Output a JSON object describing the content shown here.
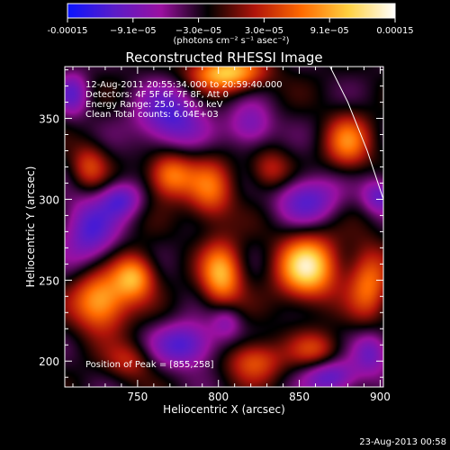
{
  "chart_data": {
    "type": "heatmap",
    "title": "Reconstructed RHESSI Image",
    "colorbar": {
      "tick_labels": [
        "-0.00015",
        "−9.1e−05",
        "−3.0e−05",
        "3.0e−05",
        "9.1e−05",
        "0.00015"
      ],
      "unit_label": "(photons cm⁻² s⁻¹ asec⁻²)",
      "range": [
        -0.00015,
        0.00015
      ],
      "colors": [
        "#0a14ff",
        "#5a1cc8",
        "#9a10a0",
        "#000000",
        "#b0140a",
        "#ff6a00",
        "#ffd040",
        "#ffffff"
      ]
    },
    "xlabel": "Heliocentric X (arcsec)",
    "ylabel": "Heliocentric Y (arcsec)",
    "xlim": [
      705,
      902
    ],
    "ylim": [
      184,
      382
    ],
    "x_ticks": [
      "750",
      "800",
      "850",
      "900"
    ],
    "y_ticks": [
      "200",
      "250",
      "300",
      "350"
    ],
    "annotations": [
      "12-Aug-2011 20:55:34.000 to 20:59:40.000",
      "Detectors: 4F 5F 6F 7F 8F, Att 0",
      "Energy Range: 25.0 - 50.0 keV",
      "Clean    Total counts: 6.04E+03"
    ],
    "peak_label": "Position of Peak = [855,258]",
    "peak": [
      855,
      258
    ],
    "limb_curve": [
      [
        868,
        384
      ],
      [
        880,
        360
      ],
      [
        892,
        330
      ],
      [
        902,
        300
      ]
    ],
    "sources": [
      {
        "x": 855,
        "y": 258,
        "value": 1.0,
        "sx": 13,
        "sy": 14
      },
      {
        "x": 727,
        "y": 237,
        "value": 0.85,
        "sx": 12,
        "sy": 13
      },
      {
        "x": 802,
        "y": 253,
        "value": 0.8,
        "sx": 9,
        "sy": 14
      },
      {
        "x": 748,
        "y": 252,
        "value": 0.75,
        "sx": 9,
        "sy": 10
      },
      {
        "x": 805,
        "y": 378,
        "value": 0.9,
        "sx": 16,
        "sy": 8
      },
      {
        "x": 770,
        "y": 315,
        "value": 0.7,
        "sx": 10,
        "sy": 10
      },
      {
        "x": 795,
        "y": 305,
        "value": 0.55,
        "sx": 10,
        "sy": 14
      },
      {
        "x": 880,
        "y": 335,
        "value": 0.6,
        "sx": 10,
        "sy": 12
      },
      {
        "x": 893,
        "y": 248,
        "value": 0.6,
        "sx": 9,
        "sy": 16
      },
      {
        "x": 822,
        "y": 200,
        "value": 0.55,
        "sx": 12,
        "sy": 9
      },
      {
        "x": 720,
        "y": 320,
        "value": 0.45,
        "sx": 8,
        "sy": 10
      },
      {
        "x": 832,
        "y": 318,
        "value": 0.4,
        "sx": 9,
        "sy": 9
      },
      {
        "x": 860,
        "y": 207,
        "value": 0.4,
        "sx": 11,
        "sy": 8
      },
      {
        "x": 745,
        "y": 200,
        "value": 0.35,
        "sx": 10,
        "sy": 8
      },
      {
        "x": 770,
        "y": 350,
        "value": -0.6,
        "sx": 15,
        "sy": 14
      },
      {
        "x": 720,
        "y": 280,
        "value": -0.55,
        "sx": 12,
        "sy": 16
      },
      {
        "x": 780,
        "y": 210,
        "value": -0.6,
        "sx": 14,
        "sy": 10
      },
      {
        "x": 855,
        "y": 300,
        "value": -0.55,
        "sx": 14,
        "sy": 11
      },
      {
        "x": 740,
        "y": 300,
        "value": -0.5,
        "sx": 9,
        "sy": 8
      },
      {
        "x": 870,
        "y": 190,
        "value": -0.55,
        "sx": 12,
        "sy": 8
      },
      {
        "x": 900,
        "y": 302,
        "value": -0.5,
        "sx": 8,
        "sy": 8
      },
      {
        "x": 820,
        "y": 345,
        "value": -0.45,
        "sx": 10,
        "sy": 10
      },
      {
        "x": 895,
        "y": 205,
        "value": -0.45,
        "sx": 8,
        "sy": 10
      },
      {
        "x": 710,
        "y": 365,
        "value": -0.45,
        "sx": 7,
        "sy": 10
      },
      {
        "x": 805,
        "y": 225,
        "value": -0.35,
        "sx": 7,
        "sy": 8
      }
    ]
  },
  "footer": {
    "timestamp": "23-Aug-2013 00:58"
  }
}
